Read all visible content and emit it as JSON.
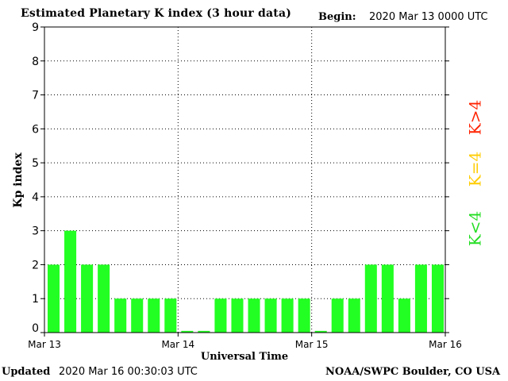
{
  "header": {
    "title": "Estimated Planetary K index (3 hour data)",
    "begin_label": "Begin:",
    "begin_value": "2020 Mar 13 0000 UTC"
  },
  "footer": {
    "updated_label": "Updated",
    "updated_value": "2020 Mar 16 00:30:03 UTC",
    "credit": "NOAA/SWPC Boulder, CO USA"
  },
  "legend": [
    {
      "label": "K<4",
      "color": "#22dd22"
    },
    {
      "label": "K=4",
      "color": "#ffcc00"
    },
    {
      "label": "K>4",
      "color": "#ff2200"
    }
  ],
  "colors": {
    "bar_below_4": "#22ff22",
    "bar_equal_4": "#ffcc00",
    "bar_above_4": "#ff2200",
    "axis": "#000000",
    "grid": "#000000"
  },
  "chart_data": {
    "type": "bar",
    "title": "Estimated Planetary K index (3 hour data)",
    "xlabel": "Universal Time",
    "ylabel": "Kp index",
    "ylim": [
      0,
      9
    ],
    "yticks": [
      0,
      1,
      2,
      3,
      4,
      5,
      6,
      7,
      8,
      9
    ],
    "x_tick_labels": [
      "Mar 13",
      "Mar 14",
      "Mar 15",
      "Mar 16"
    ],
    "interval_hours": 3,
    "start": "2020 Mar 13 0000 UTC",
    "grid": "dotted",
    "values": [
      2,
      3,
      2,
      2,
      1,
      1,
      1,
      1,
      0.05,
      0.05,
      1,
      1,
      1,
      1,
      1,
      1,
      0.05,
      1,
      1,
      2,
      2,
      1,
      2,
      2
    ]
  }
}
